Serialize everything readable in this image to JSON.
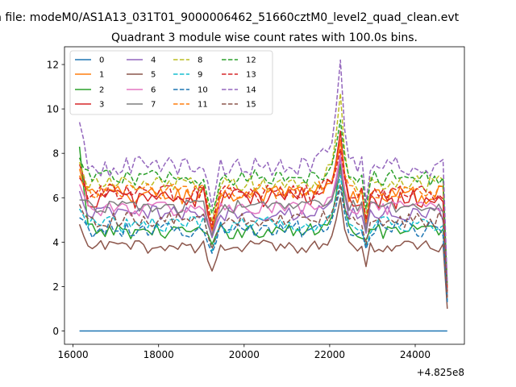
{
  "figure": {
    "suptitle": "n file: modeM0/AS1A13_031T01_9000006462_51660cztM0_level2_quad_clean.evt",
    "title": "Quadrant 3 module wise count rates with 100.0s bins.",
    "offset_text": "+4.825e8"
  },
  "chart_data": {
    "type": "line",
    "title": "Quadrant 3 module wise count rates with 100.0s bins.",
    "xlabel": "",
    "ylabel": "",
    "xlim": [
      15800,
      25150
    ],
    "ylim": [
      -0.6,
      12.8
    ],
    "x_offset": 482500000,
    "x_ticks": [
      16000,
      18000,
      20000,
      22000,
      24000
    ],
    "x_tick_labels": [
      "16000",
      "18000",
      "20000",
      "22000",
      "24000"
    ],
    "y_ticks": [
      0,
      2,
      4,
      6,
      8,
      10,
      12
    ],
    "y_tick_labels": [
      "0",
      "2",
      "4",
      "6",
      "8",
      "10",
      "12"
    ],
    "x_start": 16150,
    "x_step": 100,
    "n_points": 87,
    "grid": false,
    "legend": "upper left, 4 columns",
    "series": [
      {
        "name": "0",
        "color": "#1f77b4",
        "dash": "solid",
        "profile": {
          "base": 0.0,
          "start": 0.0,
          "end": 0.0,
          "dip": 0.0,
          "peak": 0.0,
          "noise": 0.0
        }
      },
      {
        "name": "1",
        "color": "#ff7f0e",
        "dash": "solid",
        "profile": {
          "base": 6.1,
          "start": 7.3,
          "end": 1.8,
          "dip": 4.5,
          "peak": 8.6,
          "noise": 0.45
        }
      },
      {
        "name": "2",
        "color": "#2ca02c",
        "dash": "solid",
        "profile": {
          "base": 4.5,
          "start": 8.3,
          "end": 1.5,
          "dip": 3.9,
          "peak": 7.5,
          "noise": 0.35
        }
      },
      {
        "name": "3",
        "color": "#d62728",
        "dash": "solid",
        "profile": {
          "base": 6.0,
          "start": 7.5,
          "end": 1.6,
          "dip": 4.6,
          "peak": 9.0,
          "noise": 0.5
        }
      },
      {
        "name": "4",
        "color": "#9467bd",
        "dash": "solid",
        "profile": {
          "base": 5.3,
          "start": 6.3,
          "end": 1.7,
          "dip": 4.2,
          "peak": 7.8,
          "noise": 0.35
        }
      },
      {
        "name": "5",
        "color": "#8c564b",
        "dash": "solid",
        "profile": {
          "base": 3.8,
          "start": 4.8,
          "end": 1.0,
          "dip": 2.7,
          "peak": 6.0,
          "noise": 0.3
        }
      },
      {
        "name": "6",
        "color": "#e377c2",
        "dash": "solid",
        "profile": {
          "base": 5.5,
          "start": 6.6,
          "end": 1.6,
          "dip": 4.4,
          "peak": 8.0,
          "noise": 0.35
        }
      },
      {
        "name": "7",
        "color": "#7f7f7f",
        "dash": "solid",
        "profile": {
          "base": 5.6,
          "start": 5.9,
          "end": 1.7,
          "dip": 4.3,
          "peak": 7.2,
          "noise": 0.3
        }
      },
      {
        "name": "8",
        "color": "#bcbd22",
        "dash": "dashed",
        "profile": {
          "base": 6.6,
          "start": 7.6,
          "end": 2.0,
          "dip": 4.9,
          "peak": 10.7,
          "noise": 0.4
        }
      },
      {
        "name": "9",
        "color": "#17becf",
        "dash": "dashed",
        "profile": {
          "base": 4.8,
          "start": 5.5,
          "end": 1.4,
          "dip": 3.6,
          "peak": 7.0,
          "noise": 0.4
        }
      },
      {
        "name": "10",
        "color": "#1f77b4",
        "dash": "dashed",
        "profile": {
          "base": 4.6,
          "start": 5.1,
          "end": 1.3,
          "dip": 3.5,
          "peak": 6.5,
          "noise": 0.4
        }
      },
      {
        "name": "11",
        "color": "#ff7f0e",
        "dash": "dashed",
        "profile": {
          "base": 6.3,
          "start": 7.0,
          "end": 1.9,
          "dip": 4.7,
          "peak": 8.5,
          "noise": 0.35
        }
      },
      {
        "name": "12",
        "color": "#2ca02c",
        "dash": "dashed",
        "profile": {
          "base": 6.9,
          "start": 7.8,
          "end": 2.0,
          "dip": 5.3,
          "peak": 9.5,
          "noise": 0.35
        }
      },
      {
        "name": "13",
        "color": "#d62728",
        "dash": "dashed",
        "profile": {
          "base": 6.2,
          "start": 6.9,
          "end": 1.8,
          "dip": 4.8,
          "peak": 8.2,
          "noise": 0.4
        }
      },
      {
        "name": "14",
        "color": "#9467bd",
        "dash": "dashed",
        "profile": {
          "base": 7.4,
          "start": 9.4,
          "end": 2.1,
          "dip": 5.6,
          "peak": 12.2,
          "noise": 0.45
        }
      },
      {
        "name": "15",
        "color": "#8c564b",
        "dash": "dashed",
        "profile": {
          "base": 5.0,
          "start": 5.7,
          "end": 1.5,
          "dip": 3.7,
          "peak": 6.6,
          "noise": 0.35
        }
      }
    ]
  }
}
